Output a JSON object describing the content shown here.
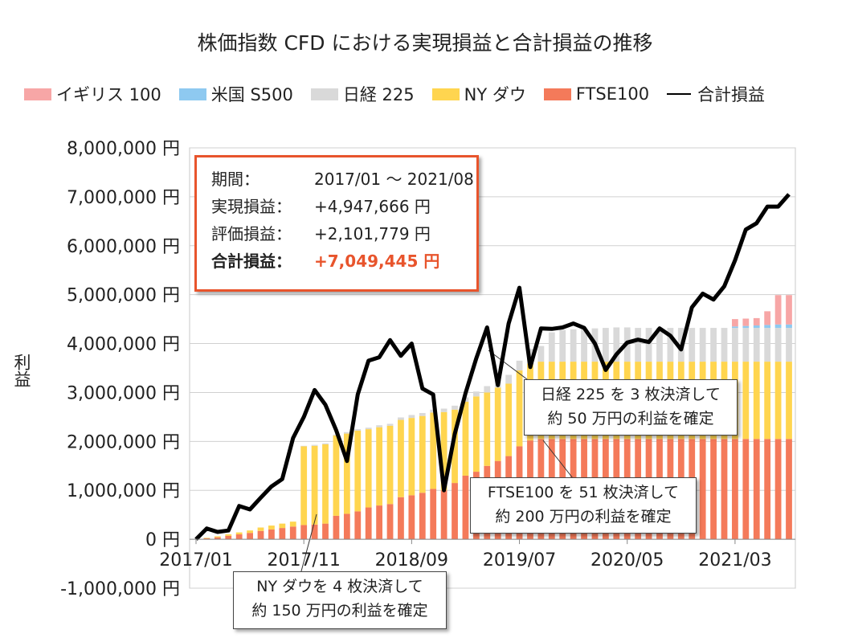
{
  "chart_data": {
    "type": "bar",
    "title": "株価指数 CFD における実現損益と合計損益の推移",
    "ylabel": "利益",
    "xlabel": "",
    "ylim": [
      -1000000,
      8000000
    ],
    "y_ticks": [
      -1000000,
      0,
      1000000,
      2000000,
      3000000,
      4000000,
      5000000,
      6000000,
      7000000,
      8000000
    ],
    "y_tick_labels": [
      "-1,000,000 円",
      "0 円",
      "1,000,000 円",
      "2,000,000 円",
      "3,000,000 円",
      "4,000,000 円",
      "5,000,000 円",
      "6,000,000 円",
      "7,000,000 円",
      "8,000,000 円"
    ],
    "x_tick_labels": [
      {
        "index": 0,
        "label": "2017/01"
      },
      {
        "index": 10,
        "label": "2017/11"
      },
      {
        "index": 20,
        "label": "2018/09"
      },
      {
        "index": 30,
        "label": "2019/07"
      },
      {
        "index": 40,
        "label": "2020/05"
      },
      {
        "index": 50,
        "label": "2021/03"
      }
    ],
    "categories": [
      "2017/01",
      "2017/02",
      "2017/03",
      "2017/04",
      "2017/05",
      "2017/06",
      "2017/07",
      "2017/08",
      "2017/09",
      "2017/10",
      "2017/11",
      "2017/12",
      "2018/01",
      "2018/02",
      "2018/03",
      "2018/04",
      "2018/05",
      "2018/06",
      "2018/07",
      "2018/08",
      "2018/09",
      "2018/10",
      "2018/11",
      "2018/12",
      "2019/01",
      "2019/02",
      "2019/03",
      "2019/04",
      "2019/05",
      "2019/06",
      "2019/07",
      "2019/08",
      "2019/09",
      "2019/10",
      "2019/11",
      "2019/12",
      "2020/01",
      "2020/02",
      "2020/03",
      "2020/04",
      "2020/05",
      "2020/06",
      "2020/07",
      "2020/08",
      "2020/09",
      "2020/10",
      "2020/11",
      "2020/12",
      "2021/01",
      "2021/02",
      "2021/03",
      "2021/04",
      "2021/05",
      "2021/06",
      "2021/07",
      "2021/08"
    ],
    "legend_position": "top",
    "grid": "horizontal",
    "series": [
      {
        "name": "FTSE100",
        "kind": "bar",
        "color": "#f47a5a",
        "values": [
          0,
          20000,
          40000,
          70000,
          100000,
          130000,
          170000,
          200000,
          230000,
          260000,
          290000,
          300000,
          320000,
          480000,
          520000,
          570000,
          650000,
          690000,
          720000,
          860000,
          900000,
          950000,
          1030000,
          1000000,
          1150000,
          1300000,
          1380000,
          1500000,
          1600000,
          1700000,
          1900000,
          2020000,
          2050000,
          2050000,
          2050000,
          2050000,
          2050000,
          2050000,
          2050000,
          2050000,
          2050000,
          2050000,
          2050000,
          2050000,
          2050000,
          2050000,
          2050000,
          2050000,
          2050000,
          2050000,
          2050000,
          2050000,
          2050000,
          2050000,
          2050000,
          2050000
        ]
      },
      {
        "name": "NY ダウ",
        "kind": "bar",
        "color": "#ffd54f",
        "values": [
          0,
          10000,
          20000,
          30000,
          40000,
          50000,
          70000,
          80000,
          90000,
          100000,
          1610000,
          1610000,
          1620000,
          1640000,
          1640000,
          1650000,
          1600000,
          1600000,
          1600000,
          1580000,
          1580000,
          1570000,
          1560000,
          1600000,
          1500000,
          1510000,
          1540000,
          1500000,
          1500000,
          1480000,
          1550000,
          1570000,
          1580000,
          1580000,
          1580000,
          1580000,
          1580000,
          1580000,
          1580000,
          1580000,
          1580000,
          1580000,
          1580000,
          1580000,
          1580000,
          1580000,
          1580000,
          1580000,
          1580000,
          1580000,
          1580000,
          1580000,
          1580000,
          1580000,
          1580000,
          1580000
        ]
      },
      {
        "name": "日経 225",
        "kind": "bar",
        "color": "#d9d9d9",
        "values": [
          0,
          0,
          0,
          0,
          0,
          0,
          0,
          0,
          0,
          0,
          10000,
          20000,
          20000,
          20000,
          30000,
          30000,
          30000,
          40000,
          40000,
          50000,
          60000,
          60000,
          60000,
          70000,
          80000,
          90000,
          100000,
          130000,
          150000,
          180000,
          200000,
          300000,
          320000,
          600000,
          650000,
          660000,
          670000,
          680000,
          690000,
          700000,
          700000,
          690000,
          690000,
          690000,
          690000,
          690000,
          690000,
          690000,
          690000,
          690000,
          690000,
          690000,
          690000,
          690000,
          690000,
          690000
        ]
      },
      {
        "name": "米国 S500",
        "kind": "bar",
        "color": "#8ec9f0",
        "values": [
          0,
          0,
          0,
          0,
          0,
          0,
          0,
          0,
          0,
          0,
          0,
          0,
          0,
          0,
          0,
          0,
          0,
          0,
          0,
          0,
          0,
          0,
          0,
          0,
          0,
          0,
          0,
          0,
          0,
          0,
          0,
          0,
          0,
          0,
          0,
          0,
          0,
          0,
          0,
          0,
          0,
          0,
          0,
          0,
          0,
          0,
          0,
          0,
          0,
          0,
          30000,
          40000,
          50000,
          60000,
          70000,
          70000
        ]
      },
      {
        "name": "イギリス 100",
        "kind": "bar",
        "color": "#f7a6a6",
        "values": [
          0,
          0,
          0,
          0,
          0,
          0,
          0,
          0,
          0,
          0,
          0,
          0,
          0,
          0,
          0,
          0,
          0,
          0,
          0,
          0,
          0,
          0,
          0,
          0,
          0,
          0,
          0,
          0,
          0,
          0,
          0,
          0,
          0,
          0,
          0,
          0,
          0,
          0,
          0,
          0,
          0,
          0,
          0,
          0,
          0,
          0,
          0,
          0,
          0,
          0,
          150000,
          150000,
          150000,
          280000,
          600000,
          600000
        ]
      },
      {
        "name": "合計損益",
        "kind": "line",
        "color": "#000000",
        "values": [
          0,
          220000,
          150000,
          180000,
          680000,
          610000,
          850000,
          1080000,
          1230000,
          2070000,
          2500000,
          3050000,
          2750000,
          2230000,
          1600000,
          2960000,
          3650000,
          3720000,
          4070000,
          3750000,
          4000000,
          3080000,
          2960000,
          1000000,
          2150000,
          2990000,
          3700000,
          4330000,
          3150000,
          4410000,
          5140000,
          3520000,
          4310000,
          4300000,
          4330000,
          4410000,
          4320000,
          4000000,
          3460000,
          3780000,
          4020000,
          4080000,
          4030000,
          4310000,
          4160000,
          3880000,
          4740000,
          5020000,
          4900000,
          5170000,
          5700000,
          6330000,
          6460000,
          6800000,
          6800000,
          7049445
        ]
      }
    ],
    "annotations": [
      {
        "line1": "日経 225 を 3 枚決済して",
        "line2": "約 50 万円の利益を確定"
      },
      {
        "line1": "FTSE100 を 51 枚決済して",
        "line2": "約 200 万円の利益を確定"
      },
      {
        "line1": "NY ダウを 4 枚決済して",
        "line2": "約 150 万円の利益を確定"
      }
    ]
  },
  "legend": {
    "items": [
      {
        "label": "イギリス 100",
        "color": "#f7a6a6"
      },
      {
        "label": "米国 S500",
        "color": "#8ec9f0"
      },
      {
        "label": "日経 225",
        "color": "#d9d9d9"
      },
      {
        "label": "NY ダウ",
        "color": "#ffd54f"
      },
      {
        "label": "FTSE100",
        "color": "#f47a5a"
      }
    ],
    "line_label": "合計損益"
  },
  "info": {
    "period_label": "期間：",
    "period_value": "2017/01 ～ 2021/08",
    "realized_label": "実現損益：",
    "realized_value": "+4,947,666 円",
    "unrealized_label": "評価損益：",
    "unrealized_value": "+2,101,779 円",
    "total_label": "合計損益：",
    "total_value": "+7,049,445 円"
  }
}
